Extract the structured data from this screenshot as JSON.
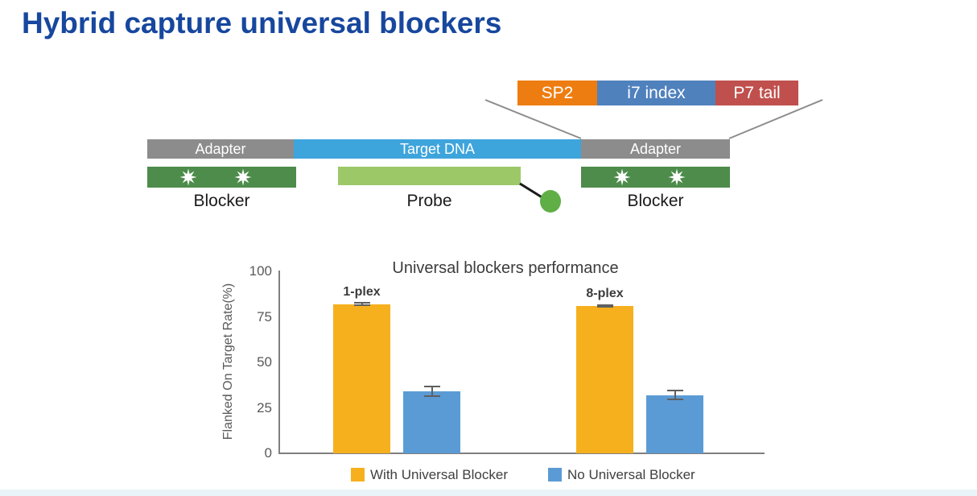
{
  "slide": {
    "title": "Hybrid capture universal blockers",
    "title_color": "#17479e"
  },
  "diagram": {
    "index_segments": [
      {
        "label": "SP2",
        "color": "#ee7d11"
      },
      {
        "label": "i7 index",
        "color": "#4f81bd"
      },
      {
        "label": "P7 tail",
        "color": "#c0504d"
      }
    ],
    "construct_segments": [
      {
        "label": "Adapter",
        "color": "#8c8c8c"
      },
      {
        "label": "Target DNA",
        "color": "#3ea4dc"
      },
      {
        "label": "Adapter",
        "color": "#8c8c8c"
      }
    ],
    "blocker_left": {
      "label": "Blocker",
      "color": "#4e8c4b"
    },
    "probe": {
      "label": "Probe",
      "color": "#9cc868",
      "dot_color": "#5fae46"
    },
    "blocker_right": {
      "label": "Blocker",
      "color": "#4e8c4b"
    },
    "star_color": "#ffffff",
    "connector_color": "#8c8c8c"
  },
  "chart_data": {
    "type": "bar",
    "title": "Universal blockers performance",
    "xlabel": "",
    "ylabel": "Flanked On Target Rate(%)",
    "ylim": [
      0,
      100
    ],
    "yticks": [
      0,
      25,
      50,
      75,
      100
    ],
    "grid": false,
    "legend_position": "bottom",
    "categories": [
      "1-plex",
      "8-plex"
    ],
    "series": [
      {
        "name": "With Universal Blocker",
        "color": "#f6b01e",
        "values": [
          82,
          81
        ],
        "errors": [
          1,
          1
        ]
      },
      {
        "name": "No Universal Blocker",
        "color": "#5b9bd5",
        "values": [
          34,
          32
        ],
        "errors": [
          3,
          3
        ]
      }
    ]
  }
}
